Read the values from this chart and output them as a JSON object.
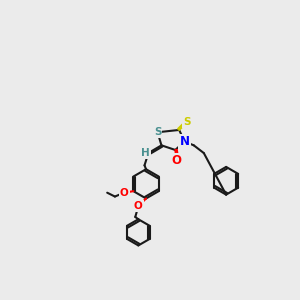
{
  "background_color": "#ebebeb",
  "bond_color": "#1a1a1a",
  "bond_lw": 1.5,
  "atom_colors": {
    "O": "#ff0000",
    "N": "#0000ff",
    "S_ring": "#4a9090",
    "S_thioxo": "#cccc00",
    "H": "#4a9090",
    "C": "#1a1a1a"
  },
  "font_size": 7.5
}
